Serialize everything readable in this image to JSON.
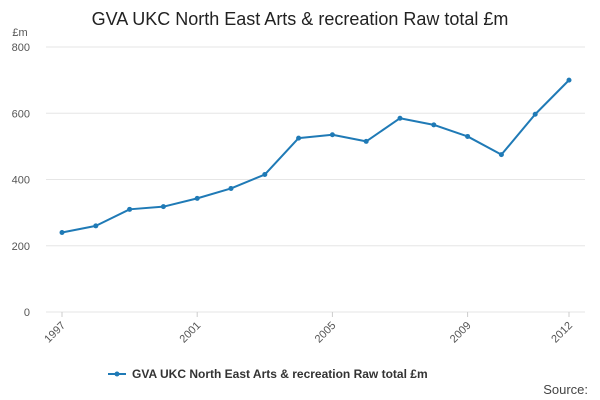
{
  "chart_data": {
    "type": "line",
    "title": "GVA UKC North East Arts & recreation Raw total £m",
    "ylabel": "£m",
    "xlabel": "",
    "ylim": [
      0,
      800
    ],
    "yticks": [
      0,
      200,
      400,
      600,
      800
    ],
    "xticks": [
      1997,
      2001,
      2005,
      2009,
      2012
    ],
    "x": [
      1997,
      1998,
      1999,
      2000,
      2001,
      2002,
      2003,
      2004,
      2005,
      2006,
      2007,
      2008,
      2009,
      2010,
      2011,
      2012
    ],
    "series": [
      {
        "name": "GVA UKC North East Arts & recreation Raw total £m",
        "color": "#1f7ab6",
        "values": [
          240,
          260,
          310,
          318,
          343,
          373,
          415,
          525,
          535,
          515,
          585,
          565,
          530,
          475,
          597,
          700
        ]
      }
    ],
    "legend": "bottom-center",
    "grid": true,
    "source_label": "Source:"
  }
}
